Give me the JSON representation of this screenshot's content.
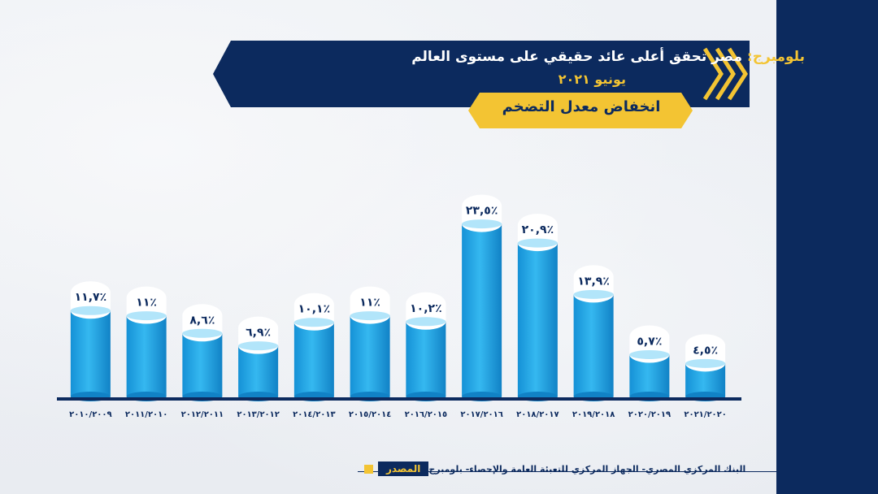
{
  "header": {
    "source_prefix": "بلومبرج:",
    "title": "مصر تحقق أعلى عائد حقيقي على مستوى العالم",
    "date": "يونيو ٢٠٢١",
    "subtitle": "انخفاض معدل التضخم"
  },
  "footer": {
    "label": "المصدر",
    "text": "البنك المركزي المصري- الجهاز المركزي للتعبئة العامة والإحصاء- بلومبرج"
  },
  "colors": {
    "navy": "#0c2a5e",
    "gold": "#f3c433",
    "bar": "#1aa6e6"
  },
  "chart_data": {
    "type": "bar",
    "categories": [
      "٢٠١٠/٢٠٠٩",
      "٢٠١١/٢٠١٠",
      "٢٠١٢/٢٠١١",
      "٢٠١٣/٢٠١٢",
      "٢٠١٤/٢٠١٣",
      "٢٠١٥/٢٠١٤",
      "٢٠١٦/٢٠١٥",
      "٢٠١٧/٢٠١٦",
      "٢٠١٨/٢٠١٧",
      "٢٠١٩/٢٠١٨",
      "٢٠٢٠/٢٠١٩",
      "٢٠٢١/٢٠٢٠"
    ],
    "values": [
      11.7,
      11,
      8.6,
      6.9,
      10.1,
      11,
      10.2,
      23.5,
      20.9,
      13.9,
      5.7,
      4.5
    ],
    "value_labels": [
      "٪١١,٧",
      "٪١١",
      "٪٨,٦",
      "٪٦,٩",
      "٪١٠,١",
      "٪١١",
      "٪١٠,٢",
      "٪٢٣,٥",
      "٪٢٠,٩",
      "٪١٣,٩",
      "٪٥,٧",
      "٪٤,٥"
    ],
    "title": "انخفاض معدل التضخم",
    "xlabel": "",
    "ylabel": "",
    "ylim": [
      0,
      25
    ]
  }
}
